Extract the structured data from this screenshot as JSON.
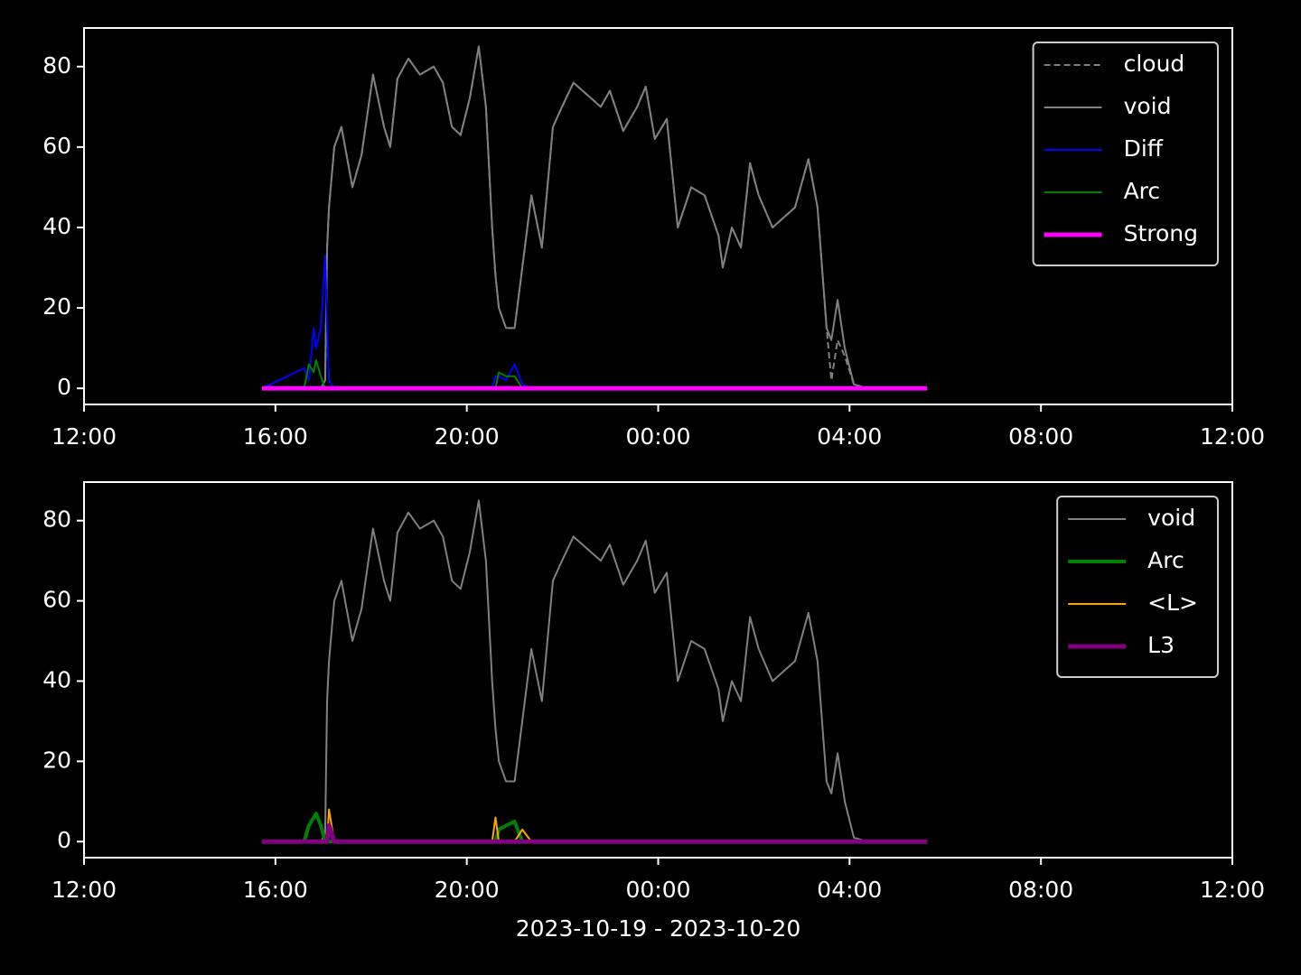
{
  "chart_data": [
    {
      "type": "line",
      "legend": "upper right",
      "ylim": [
        -4,
        89.6
      ],
      "yticks": [
        0,
        20,
        40,
        60,
        80
      ],
      "xlim": [
        0,
        24
      ],
      "xticks": [
        {
          "value": 0,
          "label": "12:00"
        },
        {
          "value": 4,
          "label": "16:00"
        },
        {
          "value": 8,
          "label": "20:00"
        },
        {
          "value": 12,
          "label": "00:00"
        },
        {
          "value": 16,
          "label": "04:00"
        },
        {
          "value": 20,
          "label": "08:00"
        },
        {
          "value": 24,
          "label": "12:00"
        }
      ],
      "x": [
        3.72,
        4.6,
        4.7,
        4.8,
        4.85,
        4.95,
        5.04,
        5.08,
        5.12,
        5.23,
        5.38,
        5.61,
        5.8,
        6.04,
        6.27,
        6.4,
        6.55,
        6.78,
        7.02,
        7.31,
        7.5,
        7.69,
        7.87,
        8.06,
        8.25,
        8.4,
        8.53,
        8.6,
        8.67,
        8.82,
        9.0,
        9.16,
        9.35,
        9.57,
        9.8,
        9.99,
        10.23,
        10.42,
        10.61,
        10.8,
        10.99,
        11.27,
        11.56,
        11.74,
        11.93,
        12.18,
        12.41,
        12.69,
        12.97,
        13.26,
        13.35,
        13.54,
        13.73,
        13.92,
        14.1,
        14.39,
        14.58,
        14.86,
        15.14,
        15.33,
        15.52,
        15.62,
        15.75,
        15.9,
        16.09,
        16.37,
        17.62
      ],
      "series": [
        {
          "name": "cloud",
          "color": "#808080",
          "linestyle": "dashed",
          "linewidth": 2,
          "values": [
            0,
            0,
            0,
            0,
            0,
            0,
            2,
            35,
            45,
            60,
            65,
            50,
            58,
            78,
            65,
            60,
            77,
            82,
            78,
            80,
            76,
            65,
            63,
            72,
            85,
            70,
            40,
            28,
            20,
            15,
            15,
            30,
            48,
            35,
            65,
            70,
            76,
            74,
            72,
            70,
            74,
            64,
            70,
            75,
            62,
            67,
            40,
            50,
            48,
            38,
            30,
            40,
            35,
            56,
            48,
            40,
            42,
            45,
            57,
            45,
            15,
            2,
            12,
            8,
            1,
            0,
            0
          ]
        },
        {
          "name": "void",
          "color": "#808080",
          "linestyle": "solid",
          "linewidth": 2,
          "values": [
            0,
            0,
            0,
            0,
            0,
            0,
            2,
            35,
            45,
            60,
            65,
            50,
            58,
            78,
            65,
            60,
            77,
            82,
            78,
            80,
            76,
            65,
            63,
            72,
            85,
            70,
            40,
            28,
            20,
            15,
            15,
            30,
            48,
            35,
            65,
            70,
            76,
            74,
            72,
            70,
            74,
            64,
            70,
            75,
            62,
            67,
            40,
            50,
            48,
            38,
            30,
            40,
            35,
            56,
            48,
            40,
            42,
            45,
            57,
            45,
            15,
            12,
            22,
            10,
            1,
            0,
            0
          ]
        },
        {
          "name": "Diff",
          "color": "#0000ff",
          "linestyle": "solid",
          "linewidth": 2,
          "values": [
            0,
            5,
            2,
            15,
            10,
            15,
            33,
            15,
            2,
            0,
            0,
            0,
            0,
            0,
            0,
            0,
            0,
            0,
            0,
            0,
            0,
            0,
            0,
            0,
            0,
            0,
            0,
            3,
            3,
            2,
            6,
            1,
            0,
            0,
            0,
            0,
            0,
            0,
            0,
            0,
            0,
            0,
            0,
            0,
            0,
            0,
            0,
            0,
            0,
            0,
            0,
            0,
            0,
            0,
            0,
            0,
            0,
            0,
            0,
            0,
            0,
            0,
            0,
            0,
            0,
            0,
            0
          ]
        },
        {
          "name": "Arc",
          "color": "#008000",
          "linestyle": "solid",
          "linewidth": 2,
          "values": [
            0,
            0,
            6,
            4,
            7,
            3,
            0,
            0,
            0,
            0,
            0,
            0,
            0,
            0,
            0,
            0,
            0,
            0,
            0,
            0,
            0,
            0,
            0,
            0,
            0,
            0,
            0,
            0,
            4,
            3,
            3,
            0,
            0,
            0,
            0,
            0,
            0,
            0,
            0,
            0,
            0,
            0,
            0,
            0,
            0,
            0,
            0,
            0,
            0,
            0,
            0,
            0,
            0,
            0,
            0,
            0,
            0,
            0,
            0,
            0,
            0,
            0,
            0,
            0,
            0,
            0,
            0
          ]
        },
        {
          "name": "Strong",
          "color": "#ff00ff",
          "linestyle": "solid",
          "linewidth": 5,
          "values": [
            0,
            0,
            0,
            0,
            0,
            0,
            0,
            0,
            0,
            0,
            0,
            0,
            0,
            0,
            0,
            0,
            0,
            0,
            0,
            0,
            0,
            0,
            0,
            0,
            0,
            0,
            0,
            0,
            0,
            0,
            0,
            0,
            0,
            0,
            0,
            0,
            0,
            0,
            0,
            0,
            0,
            0,
            0,
            0,
            0,
            0,
            0,
            0,
            0,
            0,
            0,
            0,
            0,
            0,
            0,
            0,
            0,
            0,
            0,
            0,
            0,
            0,
            0,
            0,
            0,
            0,
            0
          ]
        }
      ]
    },
    {
      "type": "line",
      "legend": "upper right",
      "ylim": [
        -4,
        89.6
      ],
      "yticks": [
        0,
        20,
        40,
        60,
        80
      ],
      "xlim": [
        0,
        24
      ],
      "xlabel": "2023-10-19 - 2023-10-20",
      "xticks": [
        {
          "value": 0,
          "label": "12:00"
        },
        {
          "value": 4,
          "label": "16:00"
        },
        {
          "value": 8,
          "label": "20:00"
        },
        {
          "value": 12,
          "label": "00:00"
        },
        {
          "value": 16,
          "label": "04:00"
        },
        {
          "value": 20,
          "label": "08:00"
        },
        {
          "value": 24,
          "label": "12:00"
        }
      ],
      "x": [
        3.72,
        4.6,
        4.7,
        4.8,
        4.85,
        4.95,
        5.04,
        5.08,
        5.12,
        5.23,
        5.38,
        5.61,
        5.8,
        6.04,
        6.27,
        6.4,
        6.55,
        6.78,
        7.02,
        7.31,
        7.5,
        7.69,
        7.87,
        8.06,
        8.25,
        8.4,
        8.53,
        8.6,
        8.67,
        8.82,
        9.0,
        9.16,
        9.35,
        9.57,
        9.8,
        9.99,
        10.23,
        10.42,
        10.61,
        10.8,
        10.99,
        11.27,
        11.56,
        11.74,
        11.93,
        12.18,
        12.41,
        12.69,
        12.97,
        13.26,
        13.35,
        13.54,
        13.73,
        13.92,
        14.1,
        14.39,
        14.58,
        14.86,
        15.14,
        15.33,
        15.52,
        15.62,
        15.75,
        15.9,
        16.09,
        16.37,
        17.62
      ],
      "series": [
        {
          "name": "void",
          "color": "#808080",
          "linestyle": "solid",
          "linewidth": 2,
          "values": [
            0,
            0,
            0,
            0,
            0,
            0,
            2,
            35,
            45,
            60,
            65,
            50,
            58,
            78,
            65,
            60,
            77,
            82,
            78,
            80,
            76,
            65,
            63,
            72,
            85,
            70,
            40,
            28,
            20,
            15,
            15,
            30,
            48,
            35,
            65,
            70,
            76,
            74,
            72,
            70,
            74,
            64,
            70,
            75,
            62,
            67,
            40,
            50,
            48,
            38,
            30,
            40,
            35,
            56,
            48,
            40,
            42,
            45,
            57,
            45,
            15,
            12,
            22,
            10,
            1,
            0,
            0
          ]
        },
        {
          "name": "Arc",
          "color": "#008000",
          "linestyle": "solid",
          "linewidth": 4,
          "values": [
            0,
            0,
            4,
            6,
            7,
            4,
            0,
            0,
            0,
            0,
            0,
            0,
            0,
            0,
            0,
            0,
            0,
            0,
            0,
            0,
            0,
            0,
            0,
            0,
            0,
            0,
            0,
            0,
            3,
            4,
            5,
            0,
            0,
            0,
            0,
            0,
            0,
            0,
            0,
            0,
            0,
            0,
            0,
            0,
            0,
            0,
            0,
            0,
            0,
            0,
            0,
            0,
            0,
            0,
            0,
            0,
            0,
            0,
            0,
            0,
            0,
            0,
            0,
            0,
            0,
            0,
            0
          ]
        },
        {
          "name": "<L>",
          "color": "#ffa500",
          "linestyle": "solid",
          "linewidth": 2,
          "values": [
            0,
            0,
            0,
            0,
            0,
            0,
            0,
            0,
            8,
            0,
            0,
            0,
            0,
            0,
            0,
            0,
            0,
            0,
            0,
            0,
            0,
            0,
            0,
            0,
            0,
            0,
            0,
            6,
            0,
            0,
            0,
            3,
            0,
            0,
            0,
            0,
            0,
            0,
            0,
            0,
            0,
            0,
            0,
            0,
            0,
            0,
            0,
            0,
            0,
            0,
            0,
            0,
            0,
            0,
            0,
            0,
            0,
            0,
            0,
            0,
            0,
            0,
            0,
            0,
            0,
            0,
            0
          ]
        },
        {
          "name": "L3",
          "color": "#800080",
          "linestyle": "solid",
          "linewidth": 5,
          "values": [
            0,
            0,
            0,
            0,
            0,
            0,
            0,
            0,
            4,
            0,
            0,
            0,
            0,
            0,
            0,
            0,
            0,
            0,
            0,
            0,
            0,
            0,
            0,
            0,
            0,
            0,
            0,
            0,
            0,
            0,
            0,
            0,
            0,
            0,
            0,
            0,
            0,
            0,
            0,
            0,
            0,
            0,
            0,
            0,
            0,
            0,
            0,
            0,
            0,
            0,
            0,
            0,
            0,
            0,
            0,
            0,
            0,
            0,
            0,
            0,
            0,
            0,
            0,
            0,
            0,
            0,
            0
          ]
        }
      ]
    }
  ]
}
